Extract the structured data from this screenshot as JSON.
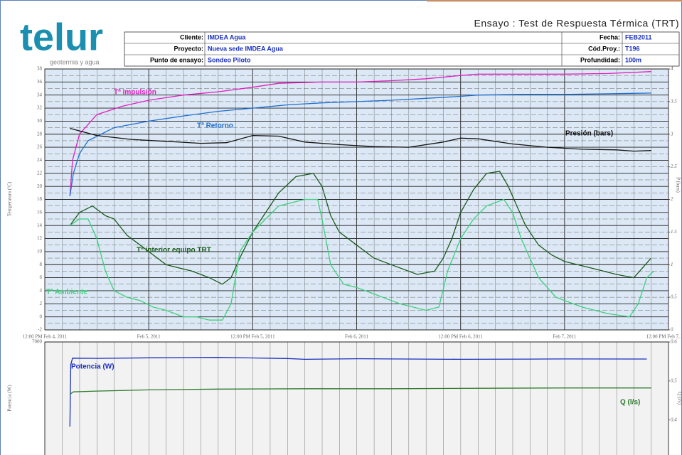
{
  "header": {
    "logo": "telur",
    "tagline": "geotermia y agua",
    "title": "Ensayo : Test de Respuesta Térmica (TRT)",
    "info": [
      [
        "Cliente:",
        "IMDEA Agua",
        "Fecha:",
        "FEB2011"
      ],
      [
        "Proyecto:",
        "Nueva sede IMDEA Agua",
        "Cód.Proy.:",
        "T196"
      ],
      [
        "Punto de ensayo:",
        "Sondeo Piloto",
        "Profundidad:",
        "100m"
      ]
    ]
  },
  "chart_data": [
    {
      "type": "line",
      "y_label": "Temperatura (ºC)",
      "y2_label": "P (bars)",
      "grid": true,
      "xlim": [
        0,
        72
      ],
      "xticks": [
        {
          "value": 0,
          "label": "12:00 PM Feb 4, 2011"
        },
        {
          "value": 12,
          "label": "Feb 5, 2011"
        },
        {
          "value": 24,
          "label": "12:00 PM Feb 5, 2011"
        },
        {
          "value": 36,
          "label": "Feb 6, 2011"
        },
        {
          "value": 48,
          "label": "12:00 PM Feb 6, 2011"
        },
        {
          "value": 60,
          "label": "Feb 7, 2011"
        },
        {
          "value": 72,
          "label": "12:00 PM Feb 7, 2011"
        }
      ],
      "ylim": [
        -2,
        38
      ],
      "yticks": [
        -2,
        0,
        2,
        4,
        6,
        8,
        10,
        12,
        14,
        16,
        18,
        20,
        22,
        24,
        26,
        28,
        30,
        32,
        34,
        36,
        38
      ],
      "y2lim": [
        0,
        4
      ],
      "y2ticks": [
        0,
        0.5,
        1,
        1.5,
        2,
        2.5,
        3,
        3.5,
        4
      ],
      "series": [
        {
          "name": "Tª Impulsión",
          "color": "#e020c0",
          "x": [
            2.9,
            3.2,
            4,
            6,
            9,
            12,
            16,
            20,
            24,
            27,
            32,
            36,
            40,
            44,
            48,
            50,
            55,
            60,
            65,
            70
          ],
          "values": [
            18.5,
            24,
            28,
            31,
            32.3,
            33.2,
            34,
            34.5,
            35.2,
            35.8,
            36,
            36,
            36.2,
            36.5,
            37,
            37.2,
            37.2,
            37.2,
            37.3,
            37.6
          ]
        },
        {
          "name": "Tª Retorno",
          "color": "#1f6fd0",
          "x": [
            2.9,
            3.3,
            4,
            5,
            8,
            12,
            16,
            20,
            24,
            28,
            32,
            36,
            40,
            44,
            48,
            50,
            55,
            60,
            65,
            70
          ],
          "values": [
            18.5,
            22,
            25,
            27,
            29,
            30,
            30.8,
            31.5,
            32,
            32.5,
            32.8,
            33,
            33.2,
            33.5,
            33.8,
            34,
            34.1,
            34.1,
            34.2,
            34.3
          ]
        },
        {
          "name": "Presión (bars)",
          "color": "#111111",
          "axis": "y2",
          "x": [
            2.9,
            6,
            10,
            14,
            18,
            21,
            24,
            27,
            30,
            34,
            38,
            42,
            46,
            48,
            50,
            54,
            58,
            62,
            66,
            68,
            70
          ],
          "values": [
            3.09,
            2.98,
            2.92,
            2.89,
            2.86,
            2.87,
            2.98,
            2.97,
            2.88,
            2.84,
            2.81,
            2.8,
            2.88,
            2.94,
            2.93,
            2.85,
            2.8,
            2.77,
            2.76,
            2.74,
            2.75
          ]
        },
        {
          "name": "Tª interior equipo TRT",
          "color": "#1a5a1a",
          "x": [
            2.9,
            4,
            5.5,
            7,
            8,
            9.5,
            11,
            12.5,
            14,
            17,
            19,
            20.5,
            21.5,
            22.5,
            24,
            25.5,
            27,
            29,
            31,
            32,
            33,
            34,
            36,
            38,
            40,
            43,
            45,
            46,
            47,
            48,
            49.5,
            51,
            52.5,
            53.5,
            54.5,
            55.5,
            57,
            58.5,
            60,
            63,
            66,
            68,
            70
          ],
          "values": [
            14,
            16,
            17,
            15.5,
            15,
            12.5,
            11,
            9.5,
            8,
            7,
            6,
            5,
            6,
            9,
            13,
            16,
            19,
            21.5,
            22,
            20,
            15.5,
            13,
            11,
            9,
            8,
            6.5,
            7,
            9,
            12,
            16,
            19.5,
            22,
            22.3,
            20,
            17,
            14,
            11,
            9.5,
            8.5,
            7.5,
            6.5,
            6,
            9
          ]
        },
        {
          "name": "Tª Ambiente",
          "color": "#3ccf7a",
          "x": [
            2.9,
            4,
            5,
            6,
            7,
            8,
            9.5,
            11,
            12.5,
            14,
            16,
            17.5,
            19,
            20.5,
            21.5,
            22.5,
            24,
            25.5,
            27,
            28.5,
            30,
            31.5,
            32,
            33,
            34.5,
            36,
            38,
            41,
            44,
            45.5,
            46.5,
            48,
            49.5,
            51,
            53,
            54,
            55,
            57,
            59,
            62,
            65,
            67.5,
            68.5,
            69.5,
            70.3
          ],
          "values": [
            14,
            15,
            15,
            12,
            7,
            4,
            3,
            2.5,
            1.5,
            1,
            0,
            0,
            -0.5,
            -0.5,
            2,
            10,
            13,
            15,
            17,
            17.5,
            18,
            18,
            15,
            8,
            5,
            4.5,
            3.5,
            2,
            1,
            1.5,
            7,
            12,
            15,
            17,
            18,
            16,
            12,
            6,
            3,
            1.5,
            0.5,
            0,
            2,
            6,
            7
          ]
        }
      ]
    },
    {
      "type": "line",
      "y_label": "Potencia (W)",
      "y2_label": "Q (l/s)",
      "grid": true,
      "xlim": [
        0,
        72
      ],
      "ylim": [
        4000,
        7000
      ],
      "yticks": [
        7000
      ],
      "y2lim": [
        0.31,
        0.6
      ],
      "y2ticks": [
        0.4,
        0.5,
        0.6
      ],
      "series": [
        {
          "name": "Potencia (W)",
          "color": "#1a2fbf",
          "x": [
            2.9,
            3.0,
            3.2,
            6,
            12,
            20,
            24,
            28,
            30,
            36,
            40,
            48,
            56,
            60,
            69.5
          ],
          "values": [
            4755,
            6400,
            6570,
            6565,
            6580,
            6590,
            6575,
            6560,
            6540,
            6555,
            6550,
            6540,
            6545,
            6550,
            6548
          ]
        },
        {
          "name": "Q (l/s)",
          "color": "#2a7a2a",
          "axis": "y2",
          "x": [
            2.9,
            3.3,
            6,
            12,
            20,
            30,
            40,
            50,
            60,
            70
          ],
          "values": [
            0.466,
            0.472,
            0.474,
            0.477,
            0.479,
            0.48,
            0.48,
            0.481,
            0.482,
            0.482
          ]
        }
      ]
    }
  ]
}
